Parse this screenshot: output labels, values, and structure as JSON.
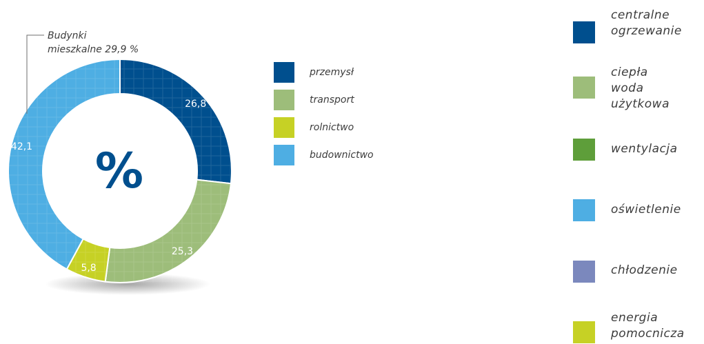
{
  "chart_data": {
    "type": "pie",
    "center_label": "%",
    "annotation": "Budynki\nmieszkalne 29,9 %",
    "slices": [
      {
        "label": "przemysł",
        "value": 26.8,
        "display": "26,8",
        "color": "#004f8e"
      },
      {
        "label": "transport",
        "value": 25.3,
        "display": "25,3",
        "color": "#9dbd7a"
      },
      {
        "label": "rolnictwo",
        "value": 5.8,
        "display": "5,8",
        "color": "#c6d125"
      },
      {
        "label": "budownictwo",
        "value": 42.1,
        "display": "42,1",
        "color": "#4eaee3"
      }
    ]
  },
  "legend_right": [
    {
      "label": "centralne\nogrzewanie",
      "color": "#004f8e"
    },
    {
      "label": "ciepła\nwoda\nużytkowa",
      "color": "#9dbd7a"
    },
    {
      "label": "wentylacja",
      "color": "#5e9e3a"
    },
    {
      "label": "oświetlenie",
      "color": "#4eaee3"
    },
    {
      "label": "chłodzenie",
      "color": "#7b88bd"
    },
    {
      "label": "energia\npomocnicza",
      "color": "#c6d125"
    }
  ]
}
